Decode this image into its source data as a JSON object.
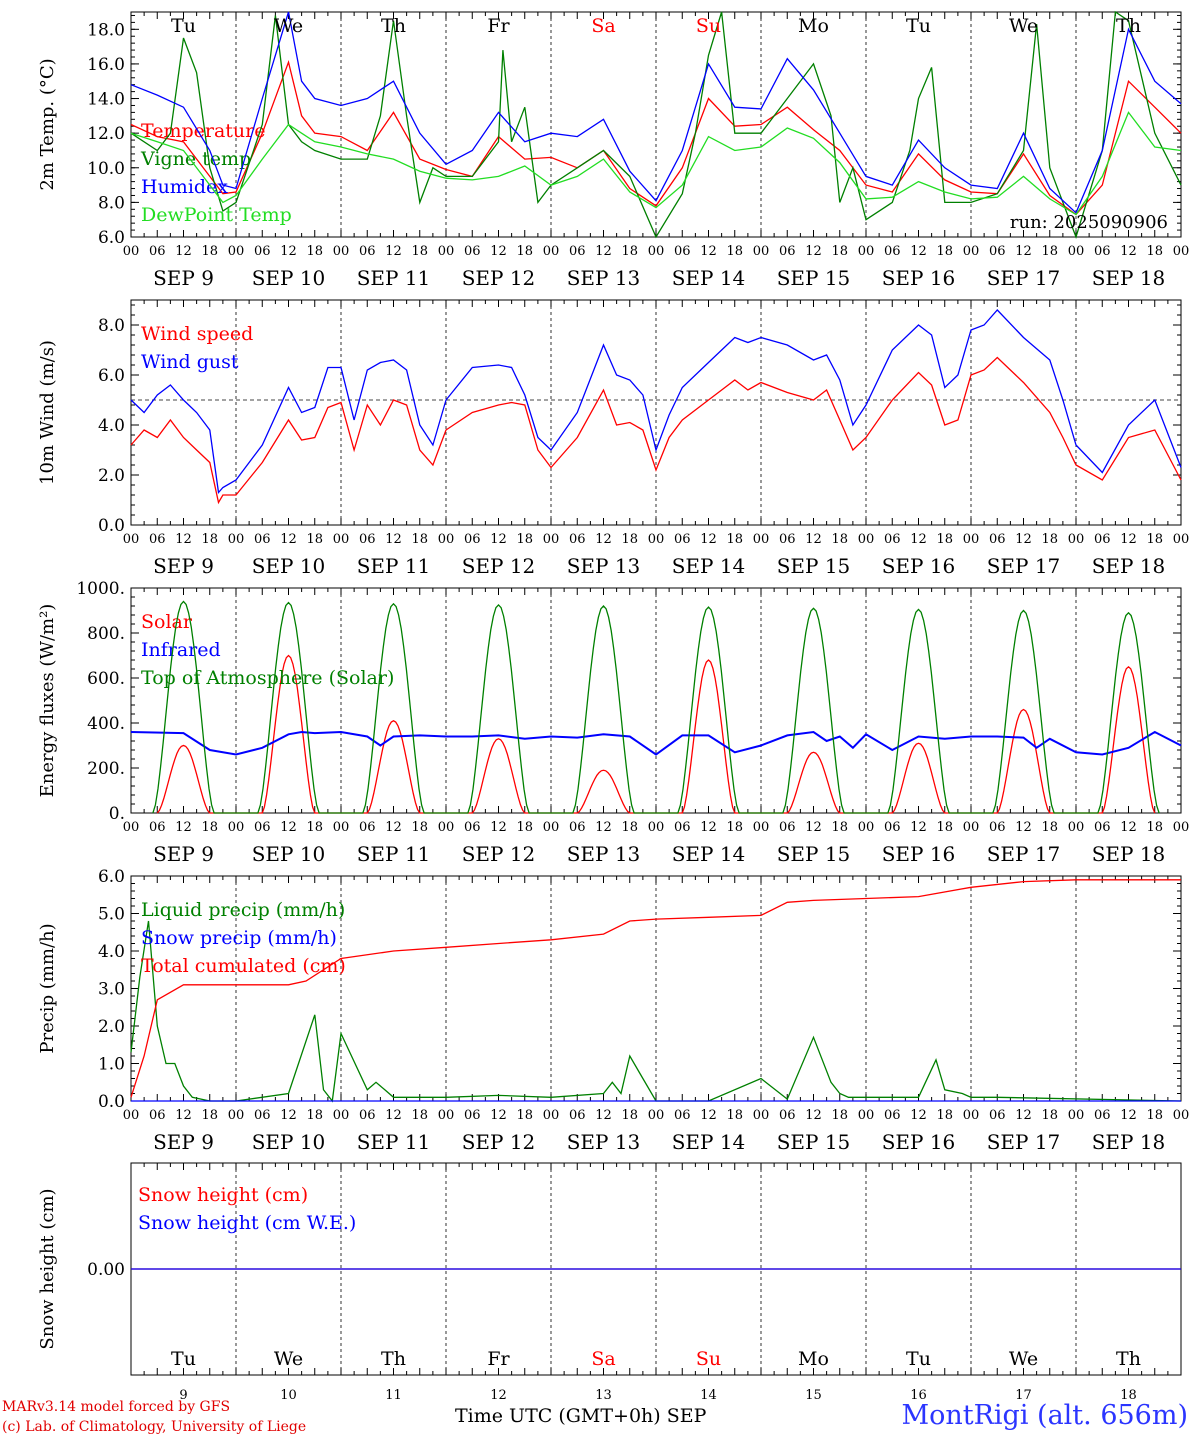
{
  "footer": {
    "credit1": "MARv3.14 model forced by GFS",
    "credit2": "(c) Lab. of Climatology, University of Liege",
    "xaxis_title": "Time UTC (GMT+0h) SEP",
    "station": "MontRigi (alt. 656m)"
  },
  "days": [
    "Tu",
    "We",
    "Th",
    "Fr",
    "Sa",
    "Su",
    "Mo",
    "Tu",
    "We",
    "Th"
  ],
  "weekend_days": [
    4,
    5
  ],
  "dates": [
    "SEP  9",
    "SEP 10",
    "SEP 11",
    "SEP 12",
    "SEP 13",
    "SEP 14",
    "SEP 15",
    "SEP 16",
    "SEP 17",
    "SEP 18"
  ],
  "day_numbers": [
    "9",
    "10",
    "11",
    "12",
    "13",
    "14",
    "15",
    "16",
    "17",
    "18"
  ],
  "hour_ticks": [
    "00",
    "06",
    "12",
    "18"
  ],
  "final_tick": "00",
  "colors": {
    "red": "#ff0000",
    "green": "#008000",
    "blue": "#0000ff",
    "light_green": "#22dd22",
    "station": "#2b35ff"
  },
  "chart_data": [
    {
      "type": "line",
      "ylabel": "2m Temp. (°C)",
      "ylim": [
        6,
        19
      ],
      "yticks": [
        "6.0",
        "8.0",
        "10.0",
        "12.0",
        "14.0",
        "16.0",
        "18.0"
      ],
      "ytick_values": [
        6,
        8,
        10,
        12,
        14,
        16,
        18
      ],
      "x_unit": "hours since SEP 9 00 UTC",
      "annotation": "run: 2025090906",
      "series": [
        {
          "name": "Temperature",
          "color": "red",
          "x": [
            0,
            6,
            12,
            18,
            21,
            24,
            30,
            36,
            39,
            42,
            48,
            54,
            60,
            66,
            72,
            78,
            84,
            90,
            96,
            102,
            108,
            114,
            120,
            126,
            132,
            138,
            144,
            150,
            156,
            162,
            168,
            174,
            180,
            186,
            192,
            198,
            204,
            210,
            216,
            222,
            228,
            234,
            240
          ],
          "y": [
            12.5,
            11.8,
            11.5,
            9.5,
            8.5,
            8.6,
            12,
            16.1,
            13,
            12,
            11.8,
            11,
            13.2,
            10.5,
            9.9,
            9.5,
            11.8,
            10.5,
            10.6,
            10,
            11,
            8.8,
            7.8,
            10,
            14,
            12.4,
            12.5,
            13.5,
            12.2,
            11,
            9,
            8.6,
            10.8,
            9.3,
            8.6,
            8.5,
            10.8,
            8.4,
            7.3,
            9,
            15,
            13.5,
            12
          ]
        },
        {
          "name": "Vigne temp",
          "color": "green",
          "x": [
            0,
            6,
            9,
            12,
            15,
            18,
            21,
            24,
            30,
            33,
            36,
            39,
            42,
            48,
            54,
            57,
            60,
            63,
            66,
            69,
            72,
            78,
            84,
            85,
            87,
            90,
            93,
            96,
            102,
            108,
            114,
            120,
            126,
            129,
            132,
            135,
            138,
            144,
            150,
            156,
            160,
            162,
            165,
            168,
            174,
            178,
            180,
            183,
            186,
            192,
            198,
            204,
            207,
            210,
            216,
            222,
            225,
            228,
            234,
            240
          ],
          "y": [
            12,
            11,
            12,
            17.5,
            15.5,
            10,
            7.5,
            8,
            12.5,
            18.8,
            12.5,
            11.5,
            11,
            10.5,
            10.5,
            13,
            18.5,
            13,
            8,
            10,
            9.5,
            9.5,
            11.5,
            16.8,
            11.5,
            13.5,
            8,
            9,
            10,
            11,
            9.5,
            4,
            8.5,
            12,
            16.5,
            19,
            12,
            12,
            14,
            16,
            13,
            8,
            10,
            7,
            8,
            11,
            14,
            15.8,
            8,
            8,
            8.5,
            11,
            18.3,
            10,
            6,
            11,
            19,
            18.5,
            12,
            9
          ]
        },
        {
          "name": "Humidex",
          "color": "blue",
          "x": [
            0,
            6,
            12,
            18,
            21,
            24,
            30,
            36,
            39,
            42,
            48,
            54,
            60,
            66,
            72,
            78,
            84,
            90,
            96,
            102,
            108,
            114,
            120,
            126,
            132,
            138,
            144,
            150,
            156,
            162,
            168,
            174,
            180,
            186,
            192,
            198,
            204,
            210,
            216,
            222,
            228,
            234,
            240
          ],
          "y": [
            14.8,
            14.2,
            13.5,
            11,
            9,
            8.8,
            14,
            19,
            15,
            14,
            13.6,
            14,
            15,
            12,
            10.2,
            11,
            13.2,
            11.5,
            12,
            11.8,
            12.8,
            9.8,
            8.1,
            11,
            16,
            13.5,
            13.4,
            16.3,
            14.5,
            12,
            9.5,
            9,
            11.6,
            10,
            9,
            8.8,
            12,
            8.8,
            7.4,
            11,
            18,
            15,
            13.7
          ]
        },
        {
          "name": "DewPoint Temp",
          "color": "light_green",
          "x": [
            0,
            6,
            12,
            18,
            21,
            24,
            30,
            36,
            39,
            42,
            48,
            54,
            60,
            66,
            72,
            78,
            84,
            90,
            96,
            102,
            108,
            114,
            120,
            126,
            132,
            138,
            144,
            150,
            156,
            162,
            168,
            174,
            180,
            186,
            192,
            198,
            204,
            210,
            216,
            222,
            228,
            234,
            240
          ],
          "y": [
            12,
            11.5,
            11,
            9,
            8,
            8.4,
            10.5,
            12.5,
            12,
            11.5,
            11.2,
            10.8,
            10.5,
            9.8,
            9.4,
            9.3,
            9.5,
            10.1,
            9,
            9.5,
            10.5,
            8.6,
            7.7,
            9,
            11.8,
            11,
            11.2,
            12.3,
            11.7,
            10.3,
            8.2,
            8.3,
            9.2,
            8.6,
            8.2,
            8.3,
            9.5,
            8.2,
            7.3,
            9.5,
            13.2,
            11.2,
            11
          ]
        }
      ]
    },
    {
      "type": "line",
      "ylabel": "10m Wind (m/s)",
      "ylim": [
        0,
        9
      ],
      "yticks": [
        "0.0",
        "2.0",
        "4.0",
        "6.0",
        "8.0"
      ],
      "ytick_values": [
        0,
        2,
        4,
        6,
        8
      ],
      "reference_line": 5,
      "series": [
        {
          "name": "Wind speed",
          "color": "red",
          "x": [
            0,
            3,
            6,
            9,
            12,
            15,
            18,
            20,
            21,
            24,
            30,
            36,
            39,
            42,
            45,
            48,
            51,
            54,
            57,
            60,
            63,
            66,
            69,
            72,
            78,
            84,
            87,
            90,
            93,
            96,
            102,
            108,
            111,
            114,
            117,
            120,
            123,
            126,
            132,
            138,
            141,
            144,
            150,
            156,
            159,
            162,
            165,
            168,
            174,
            180,
            183,
            186,
            189,
            192,
            195,
            198,
            204,
            210,
            213,
            216,
            222,
            228,
            234,
            240
          ],
          "y": [
            3.2,
            3.8,
            3.5,
            4.2,
            3.5,
            3,
            2.5,
            0.9,
            1.2,
            1.2,
            2.5,
            4.2,
            3.4,
            3.5,
            4.7,
            4.9,
            3,
            4.8,
            4,
            5,
            4.8,
            3,
            2.4,
            3.8,
            4.5,
            4.8,
            4.9,
            4.8,
            3,
            2.3,
            3.5,
            5.4,
            4,
            4.1,
            3.8,
            2.2,
            3.5,
            4.2,
            5,
            5.8,
            5.4,
            5.7,
            5.3,
            5,
            5.4,
            4.2,
            3,
            3.5,
            5,
            6.1,
            5.6,
            4,
            4.2,
            6,
            6.2,
            6.7,
            5.7,
            4.5,
            3.5,
            2.4,
            1.8,
            3.5,
            3.8,
            1.8
          ]
        },
        {
          "name": "Wind gust",
          "color": "blue",
          "x": [
            0,
            3,
            6,
            9,
            12,
            15,
            18,
            20,
            21,
            24,
            30,
            36,
            39,
            42,
            45,
            48,
            51,
            54,
            57,
            60,
            63,
            66,
            69,
            72,
            78,
            84,
            87,
            90,
            93,
            96,
            102,
            108,
            111,
            114,
            117,
            120,
            123,
            126,
            132,
            138,
            141,
            144,
            150,
            156,
            159,
            162,
            165,
            168,
            174,
            180,
            183,
            186,
            189,
            192,
            195,
            198,
            204,
            210,
            213,
            216,
            222,
            228,
            234,
            240
          ],
          "y": [
            5,
            4.5,
            5.2,
            5.6,
            5,
            4.5,
            3.8,
            1.3,
            1.5,
            1.8,
            3.2,
            5.5,
            4.5,
            4.7,
            6.3,
            6.3,
            4.2,
            6.2,
            6.5,
            6.6,
            6.2,
            4,
            3.2,
            5,
            6.3,
            6.4,
            6.3,
            5.2,
            3.5,
            3,
            4.5,
            7.2,
            6,
            5.8,
            5.2,
            3,
            4.4,
            5.5,
            6.5,
            7.5,
            7.3,
            7.5,
            7.2,
            6.6,
            6.8,
            5.8,
            4,
            4.8,
            7,
            8,
            7.6,
            5.5,
            6,
            7.8,
            8,
            8.6,
            7.5,
            6.6,
            5,
            3.2,
            2.1,
            4,
            5,
            2.3
          ]
        }
      ]
    },
    {
      "type": "line",
      "ylabel": "Energy fluxes (W/m²)",
      "ylim": [
        0,
        1000
      ],
      "yticks": [
        "0.",
        "200.",
        "400.",
        "600.",
        "800.",
        "1000."
      ],
      "ytick_values": [
        0,
        200,
        400,
        600,
        800,
        1000
      ],
      "series": [
        {
          "name": "Solar",
          "color": "red",
          "daily_shape": "bell",
          "hours_start": 6,
          "hours_end": 18,
          "daily_peaks": [
            300,
            700,
            410,
            330,
            190,
            680,
            270,
            310,
            460,
            650
          ]
        },
        {
          "name": "Infrared",
          "color": "blue",
          "x": [
            0,
            12,
            18,
            24,
            30,
            36,
            39,
            42,
            48,
            54,
            57,
            60,
            66,
            72,
            78,
            84,
            90,
            96,
            102,
            108,
            114,
            120,
            126,
            132,
            138,
            144,
            150,
            156,
            159,
            162,
            165,
            168,
            174,
            180,
            186,
            192,
            198,
            204,
            207,
            210,
            216,
            222,
            228,
            234,
            240
          ],
          "y": [
            360,
            355,
            280,
            260,
            290,
            350,
            360,
            355,
            360,
            340,
            300,
            340,
            345,
            340,
            340,
            345,
            330,
            340,
            335,
            350,
            340,
            260,
            345,
            345,
            270,
            300,
            345,
            360,
            320,
            340,
            290,
            350,
            280,
            340,
            330,
            340,
            340,
            335,
            290,
            330,
            270,
            260,
            290,
            360,
            300
          ]
        },
        {
          "name": "Top of Atmosphere (Solar)",
          "color": "green",
          "daily_shape": "bell",
          "hours_start": 5,
          "hours_end": 19,
          "daily_peaks": [
            940,
            935,
            930,
            925,
            920,
            915,
            910,
            905,
            900,
            890
          ]
        }
      ]
    },
    {
      "type": "line",
      "ylabel": "Precip (mm/h)",
      "ylim": [
        0,
        6
      ],
      "yticks": [
        "0.0",
        "1.0",
        "2.0",
        "3.0",
        "4.0",
        "5.0",
        "6.0"
      ],
      "ytick_values": [
        0,
        1,
        2,
        3,
        4,
        5,
        6
      ],
      "series": [
        {
          "name": "Liquid precip (mm/h)",
          "color": "green",
          "x": [
            0,
            2,
            4,
            6,
            8,
            10,
            12,
            14,
            18,
            24,
            36,
            42,
            44,
            46,
            48,
            54,
            56,
            58,
            60,
            66,
            72,
            84,
            96,
            108,
            110,
            112,
            114,
            116,
            120,
            132,
            144,
            150,
            156,
            160,
            162,
            164,
            168,
            180,
            184,
            186,
            190,
            192,
            198,
            240
          ],
          "y": [
            1.3,
            3.3,
            4.8,
            2,
            1,
            1,
            0.4,
            0.1,
            0,
            0,
            0.2,
            2.3,
            0.3,
            0,
            1.8,
            0.3,
            0.5,
            0.3,
            0.1,
            0.1,
            0.1,
            0.15,
            0.1,
            0.2,
            0.5,
            0.2,
            1.2,
            0.8,
            0,
            0,
            0.6,
            0.05,
            1.7,
            0.5,
            0.2,
            0.1,
            0.1,
            0.1,
            1.1,
            0.3,
            0.2,
            0.1,
            0.1,
            0
          ]
        },
        {
          "name": "Snow precip (mm/h)",
          "color": "blue",
          "x": [
            0,
            240
          ],
          "y": [
            0,
            0
          ]
        },
        {
          "name": "Total cumulated (cm)",
          "color": "red",
          "x": [
            0,
            3,
            6,
            12,
            18,
            36,
            40,
            48,
            60,
            72,
            84,
            96,
            108,
            114,
            120,
            132,
            144,
            150,
            156,
            168,
            180,
            192,
            204,
            216,
            228,
            240
          ],
          "y": [
            0.1,
            1.2,
            2.7,
            3.1,
            3.1,
            3.1,
            3.2,
            3.8,
            4,
            4.1,
            4.2,
            4.3,
            4.45,
            4.8,
            4.85,
            4.9,
            4.95,
            5.3,
            5.35,
            5.4,
            5.45,
            5.7,
            5.85,
            5.9,
            5.9,
            5.9
          ]
        }
      ]
    },
    {
      "type": "line",
      "ylabel": "Snow height (cm)",
      "ylim": [
        -1,
        1
      ],
      "yticks": [
        "0.00"
      ],
      "ytick_values": [
        0
      ],
      "series": [
        {
          "name": "Snow height (cm)",
          "color": "red",
          "x": [
            0,
            240
          ],
          "y": [
            0,
            0
          ]
        },
        {
          "name": "Snow height (cm W.E.)",
          "color": "blue",
          "x": [
            0,
            240
          ],
          "y": [
            0,
            0
          ]
        }
      ]
    }
  ]
}
